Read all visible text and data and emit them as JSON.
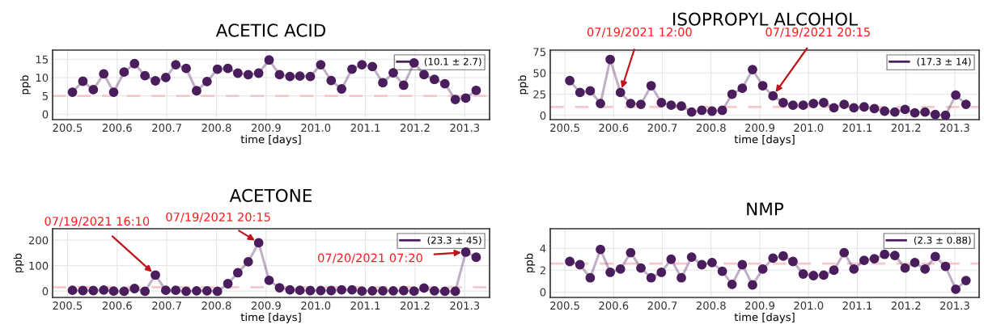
{
  "chart_data": [
    {
      "type": "line",
      "title": "ACETIC ACID",
      "xlabel": "time [days]",
      "ylabel": "ppb",
      "x": [
        200.51,
        200.531,
        200.552,
        200.573,
        200.593,
        200.614,
        200.635,
        200.656,
        200.677,
        200.698,
        200.718,
        200.739,
        200.76,
        200.781,
        200.802,
        200.823,
        200.843,
        200.864,
        200.885,
        200.906,
        200.927,
        200.948,
        200.968,
        200.989,
        201.01,
        201.031,
        201.052,
        201.073,
        201.093,
        201.114,
        201.135,
        201.156,
        201.177,
        201.198,
        201.218,
        201.239,
        201.26,
        201.281,
        201.302,
        201.323
      ],
      "series": [
        {
          "name": "(10.1 ± 2.7)",
          "color": "#4a1d5c",
          "values": [
            6,
            9,
            6.7,
            11,
            6,
            11.5,
            13.8,
            10.5,
            9.1,
            10,
            13.5,
            12.5,
            6.4,
            8.9,
            12.3,
            12.5,
            11.2,
            10.8,
            11.2,
            14.8,
            10.8,
            10.3,
            10.4,
            10.3,
            13.5,
            9.2,
            6.9,
            12.3,
            13.5,
            13,
            8.6,
            11.3,
            7.9,
            14,
            10.8,
            9.5,
            8.3,
            4,
            4.4,
            6.5
          ]
        }
      ],
      "xlim": [
        200.47,
        201.35
      ],
      "xticks": [
        {
          "value": 200.5,
          "label": "200.5"
        },
        {
          "value": 200.6,
          "label": "200.6"
        },
        {
          "value": 200.7,
          "label": "200.7"
        },
        {
          "value": 200.8,
          "label": "200.8"
        },
        {
          "value": 200.9,
          "label": "200.9"
        },
        {
          "value": 201.0,
          "label": "201.0"
        },
        {
          "value": 201.1,
          "label": "201.1"
        },
        {
          "value": 201.2,
          "label": "201.2"
        },
        {
          "value": 201.3,
          "label": "201.3"
        }
      ],
      "ylim": [
        -1.5,
        17.5
      ],
      "yticks": [
        0,
        5,
        10,
        15
      ],
      "ref_lines": [
        {
          "axis": "y",
          "value": 5,
          "color": "#f8c8c8",
          "line_style": "dashed"
        }
      ],
      "grid": true,
      "legend": "top right",
      "marker": "circle",
      "line_style": "solid"
    },
    {
      "type": "line",
      "title": "ISOPROPYL ALCOHOL",
      "xlabel": "time [days]",
      "ylabel": "ppb",
      "x": [
        200.51,
        200.531,
        200.552,
        200.573,
        200.593,
        200.614,
        200.635,
        200.656,
        200.677,
        200.698,
        200.718,
        200.739,
        200.76,
        200.781,
        200.802,
        200.823,
        200.843,
        200.864,
        200.885,
        200.906,
        200.927,
        200.948,
        200.968,
        200.989,
        201.01,
        201.031,
        201.052,
        201.073,
        201.093,
        201.114,
        201.135,
        201.156,
        201.177,
        201.198,
        201.218,
        201.239,
        201.26,
        201.281,
        201.302,
        201.323
      ],
      "series": [
        {
          "name": "(17.3 ± 14)",
          "color": "#4a1d5c",
          "values": [
            41,
            27,
            29,
            14,
            66,
            27,
            14,
            13,
            35,
            15,
            12,
            11,
            4,
            6,
            5,
            6,
            25,
            32,
            54,
            35,
            23,
            15,
            12,
            12,
            14,
            15,
            9,
            13,
            9,
            10,
            8,
            5,
            4,
            7,
            3,
            4,
            1,
            0,
            24,
            13
          ]
        }
      ],
      "xlim": [
        200.47,
        201.35
      ],
      "xticks": [
        {
          "value": 200.5,
          "label": "200.5"
        },
        {
          "value": 200.6,
          "label": "200.6"
        },
        {
          "value": 200.7,
          "label": "200.7"
        },
        {
          "value": 200.8,
          "label": "200.8"
        },
        {
          "value": 200.9,
          "label": "200.9"
        },
        {
          "value": 201.0,
          "label": "201.0"
        },
        {
          "value": 201.1,
          "label": "201.1"
        },
        {
          "value": 201.2,
          "label": "201.2"
        },
        {
          "value": 201.3,
          "label": "201.3"
        }
      ],
      "ylim": [
        -5,
        77
      ],
      "yticks": [
        0,
        25,
        50,
        75
      ],
      "ref_lines": [
        {
          "axis": "y",
          "value": 10,
          "color": "#f8c8c8",
          "line_style": "dashed"
        }
      ],
      "annotations": [
        {
          "text": "07/19/2021 12:00",
          "x": 200.614,
          "y": 27
        },
        {
          "text": "07/19/2021 20:15",
          "x": 200.927,
          "y": 23
        }
      ],
      "grid": true,
      "legend": "top right",
      "marker": "circle",
      "line_style": "solid"
    },
    {
      "type": "line",
      "title": "ACETONE",
      "xlabel": "time [days]",
      "ylabel": "ppb",
      "x": [
        200.51,
        200.531,
        200.552,
        200.573,
        200.593,
        200.614,
        200.635,
        200.656,
        200.677,
        200.698,
        200.718,
        200.739,
        200.76,
        200.781,
        200.802,
        200.823,
        200.843,
        200.864,
        200.885,
        200.906,
        200.927,
        200.948,
        200.968,
        200.989,
        201.01,
        201.031,
        201.052,
        201.073,
        201.093,
        201.114,
        201.135,
        201.156,
        201.177,
        201.198,
        201.218,
        201.239,
        201.26,
        201.281,
        201.302,
        201.323
      ],
      "series": [
        {
          "name": "(23.3 ± 45)",
          "color": "#4a1d5c",
          "values": [
            3,
            2,
            2,
            4,
            0,
            -1,
            10,
            -1,
            63,
            3,
            3,
            -1,
            1,
            1,
            -1,
            29,
            72,
            115,
            190,
            42,
            13,
            5,
            3,
            2,
            2,
            2,
            5,
            5,
            0,
            1,
            1,
            1,
            2,
            0,
            12,
            1,
            -1,
            -1,
            153,
            133
          ]
        }
      ],
      "xlim": [
        200.47,
        201.35
      ],
      "xticks": [
        {
          "value": 200.5,
          "label": "200.5"
        },
        {
          "value": 200.6,
          "label": "200.6"
        },
        {
          "value": 200.7,
          "label": "200.7"
        },
        {
          "value": 200.8,
          "label": "200.8"
        },
        {
          "value": 200.9,
          "label": "200.9"
        },
        {
          "value": 201.0,
          "label": "201.0"
        },
        {
          "value": 201.1,
          "label": "201.1"
        },
        {
          "value": 201.2,
          "label": "201.2"
        },
        {
          "value": 201.3,
          "label": "201.3"
        }
      ],
      "ylim": [
        -25,
        245
      ],
      "yticks": [
        0,
        100,
        200
      ],
      "ref_lines": [
        {
          "axis": "y",
          "value": 15,
          "color": "#f8c8c8",
          "line_style": "dashed"
        }
      ],
      "annotations": [
        {
          "text": "07/19/2021 16:10",
          "x": 200.677,
          "y": 63
        },
        {
          "text": "07/19/2021 20:15",
          "x": 200.885,
          "y": 190
        },
        {
          "text": "07/20/2021 07:20",
          "x": 201.302,
          "y": 153
        }
      ],
      "grid": true,
      "legend": "top right",
      "marker": "circle",
      "line_style": "solid"
    },
    {
      "type": "line",
      "title": "NMP",
      "xlabel": "time [days]",
      "ylabel": "ppb",
      "x": [
        200.51,
        200.531,
        200.552,
        200.573,
        200.593,
        200.614,
        200.635,
        200.656,
        200.677,
        200.698,
        200.718,
        200.739,
        200.76,
        200.781,
        200.802,
        200.823,
        200.843,
        200.864,
        200.885,
        200.906,
        200.927,
        200.948,
        200.968,
        200.989,
        201.01,
        201.031,
        201.052,
        201.073,
        201.093,
        201.114,
        201.135,
        201.156,
        201.177,
        201.198,
        201.218,
        201.239,
        201.26,
        201.281,
        201.302,
        201.323
      ],
      "series": [
        {
          "name": "(2.3 ± 0.88)",
          "color": "#4a1d5c",
          "values": [
            2.8,
            2.5,
            1.3,
            3.9,
            1.8,
            2.1,
            3.6,
            2.2,
            1.3,
            1.8,
            3,
            1.3,
            3.2,
            2.5,
            2.7,
            1.9,
            0.7,
            2.5,
            0.65,
            2.1,
            3.1,
            3.3,
            2.8,
            1.65,
            1.5,
            1.55,
            2,
            3.6,
            2.1,
            2.9,
            3.05,
            3.45,
            3.35,
            2.2,
            2.7,
            2.1,
            3.25,
            2.35,
            0.25,
            1.05
          ]
        }
      ],
      "xlim": [
        200.47,
        201.35
      ],
      "xticks": [
        {
          "value": 200.5,
          "label": "200.5"
        },
        {
          "value": 200.6,
          "label": "200.6"
        },
        {
          "value": 200.7,
          "label": "200.7"
        },
        {
          "value": 200.8,
          "label": "200.8"
        },
        {
          "value": 200.9,
          "label": "200.9"
        },
        {
          "value": 201.0,
          "label": "201.0"
        },
        {
          "value": 201.1,
          "label": "201.1"
        },
        {
          "value": 201.2,
          "label": "201.2"
        },
        {
          "value": 201.3,
          "label": "201.3"
        }
      ],
      "ylim": [
        -0.5,
        5.8
      ],
      "yticks": [
        0,
        2,
        4
      ],
      "ref_lines": [
        {
          "axis": "y",
          "value": 2.6,
          "color": "#f8c8c8",
          "line_style": "dashed"
        }
      ],
      "grid": true,
      "legend": "top right",
      "marker": "circle",
      "line_style": "solid"
    }
  ]
}
